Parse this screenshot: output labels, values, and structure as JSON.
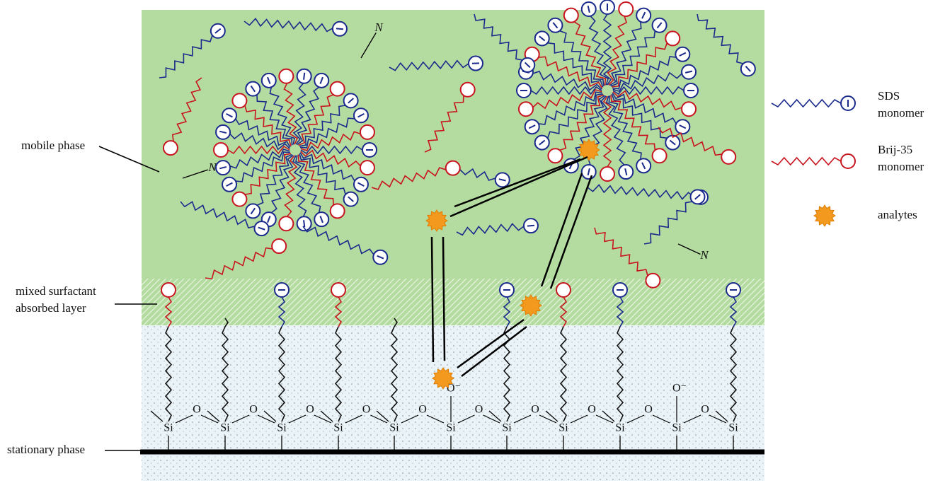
{
  "labels": {
    "mobile_phase": "mobile phase",
    "mixed_layer": [
      "mixed surfactant",
      "absorbed layer"
    ],
    "stationary_phase": "stationary phase"
  },
  "legend": [
    {
      "label": [
        "SDS",
        "monomer"
      ]
    },
    {
      "label": [
        "Brij-35",
        "monomer"
      ]
    },
    {
      "label": [
        "analytes"
      ]
    }
  ],
  "silica": {
    "si": [
      "Si",
      "Si",
      "Si",
      "Si",
      "Si",
      "Si",
      "Si",
      "Si",
      "Si",
      "Si",
      "Si"
    ],
    "o": [
      "O",
      "O",
      "O",
      "O",
      "O",
      "O",
      "O",
      "O",
      "O",
      "O"
    ],
    "o_minus": [
      "O⁻",
      "O⁻"
    ]
  },
  "acetonitrile": [
    "N",
    "N",
    "N"
  ]
}
